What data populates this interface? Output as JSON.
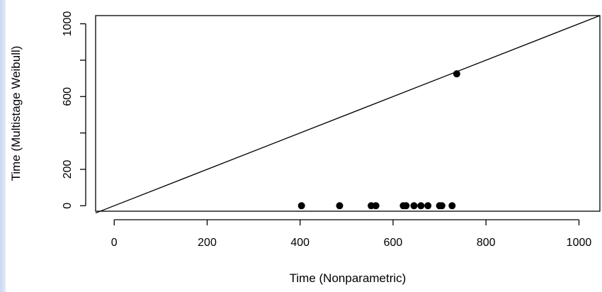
{
  "chart_data": {
    "type": "scatter",
    "title": "",
    "xlabel": "Time (Nonparametric)",
    "ylabel": "Time (Multistage Weibull)",
    "xlim": [
      -40,
      1045
    ],
    "ylim": [
      -30,
      1045
    ],
    "x_ticks": [
      0,
      200,
      400,
      600,
      800,
      1000
    ],
    "x_tick_labels": [
      "0",
      "200",
      "400",
      "600",
      "800",
      "1000"
    ],
    "y_ticks": [
      0,
      200,
      400,
      600,
      800,
      1000
    ],
    "y_tick_labels": [
      "0",
      "200",
      "",
      "600",
      "",
      "1000"
    ],
    "reference_line": {
      "type": "identity",
      "from": [
        -40,
        -40
      ],
      "to": [
        1045,
        1045
      ]
    },
    "points": [
      {
        "x": 403,
        "y": 0
      },
      {
        "x": 485,
        "y": 0
      },
      {
        "x": 553,
        "y": 0
      },
      {
        "x": 563,
        "y": 0
      },
      {
        "x": 622,
        "y": 0
      },
      {
        "x": 628,
        "y": 0
      },
      {
        "x": 645,
        "y": 0
      },
      {
        "x": 660,
        "y": 0
      },
      {
        "x": 675,
        "y": 0
      },
      {
        "x": 700,
        "y": 0
      },
      {
        "x": 705,
        "y": 0
      },
      {
        "x": 727,
        "y": 0
      },
      {
        "x": 737,
        "y": 725
      }
    ],
    "grid": false,
    "legend": "none",
    "colors": {
      "points": "#000000",
      "line": "#000000",
      "frame": "#000000"
    }
  }
}
